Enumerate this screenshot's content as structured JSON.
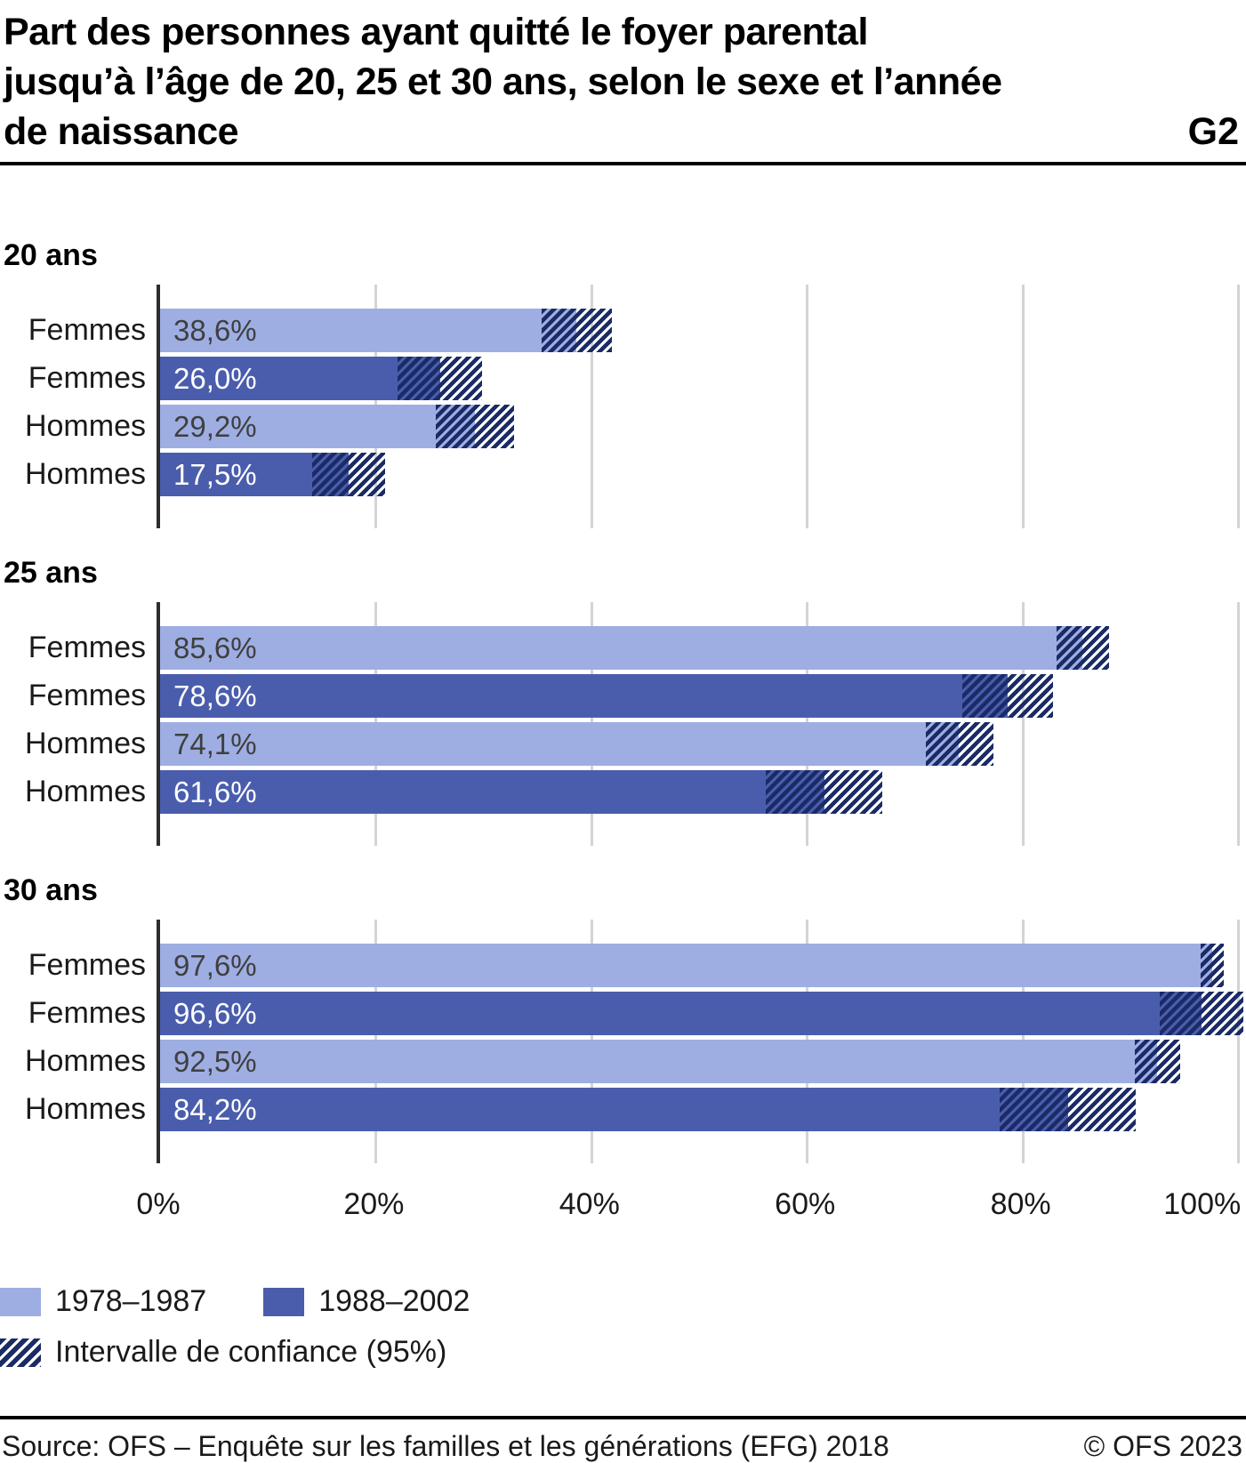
{
  "header": {
    "title_lines": [
      "Part des personnes ayant quitté le foyer parental",
      "jusqu’à l’âge de 20, 25 et 30 ans, selon le sexe et l’année",
      "de naissance"
    ],
    "figure_id": "G2"
  },
  "chart_data": {
    "type": "bar",
    "orientation": "horizontal",
    "title": "Part des personnes ayant quitté le foyer parental jusqu’à l’âge de 20, 25 et 30 ans, selon le sexe et l’année de naissance",
    "value_unit": "%",
    "x_axis": {
      "min": 0,
      "max": 100,
      "tick_values": [
        0,
        20,
        40,
        60,
        80,
        100
      ],
      "ticks": [
        "0%",
        "20%",
        "40%",
        "60%",
        "80%",
        "100%"
      ],
      "grid": true
    },
    "series": [
      {
        "name": "1978–1987",
        "color": "#9EAEE3",
        "value_text_color": "#3F3F3F"
      },
      {
        "name": "1988–2002",
        "color": "#4A5DAD",
        "value_text_color": "#FFFFFF"
      }
    ],
    "groups": [
      {
        "label": "20 ans",
        "bars": [
          {
            "row_label": "Femmes",
            "series_index": 0,
            "value": 38.6,
            "value_label": "38,6%",
            "ci_low": 35.4,
            "ci_high": 41.9
          },
          {
            "row_label": "Femmes",
            "series_index": 1,
            "value": 26.0,
            "value_label": "26,0%",
            "ci_low": 22.0,
            "ci_high": 29.9
          },
          {
            "row_label": "Hommes",
            "series_index": 0,
            "value": 29.2,
            "value_label": "29,2%",
            "ci_low": 25.6,
            "ci_high": 32.8
          },
          {
            "row_label": "Hommes",
            "series_index": 1,
            "value": 17.5,
            "value_label": "17,5%",
            "ci_low": 14.1,
            "ci_high": 20.9
          }
        ]
      },
      {
        "label": "25 ans",
        "bars": [
          {
            "row_label": "Femmes",
            "series_index": 0,
            "value": 85.6,
            "value_label": "85,6%",
            "ci_low": 83.2,
            "ci_high": 88.0
          },
          {
            "row_label": "Femmes",
            "series_index": 1,
            "value": 78.6,
            "value_label": "78,6%",
            "ci_low": 74.4,
            "ci_high": 82.8
          },
          {
            "row_label": "Hommes",
            "series_index": 0,
            "value": 74.1,
            "value_label": "74,1%",
            "ci_low": 71.0,
            "ci_high": 77.3
          },
          {
            "row_label": "Hommes",
            "series_index": 1,
            "value": 61.6,
            "value_label": "61,6%",
            "ci_low": 56.2,
            "ci_high": 67.0
          }
        ]
      },
      {
        "label": "30 ans",
        "bars": [
          {
            "row_label": "Femmes",
            "series_index": 0,
            "value": 97.6,
            "value_label": "97,6%",
            "ci_low": 96.5,
            "ci_high": 98.7
          },
          {
            "row_label": "Femmes",
            "series_index": 1,
            "value": 96.6,
            "value_label": "96,6%",
            "ci_low": 92.7,
            "ci_high": 100.5
          },
          {
            "row_label": "Hommes",
            "series_index": 0,
            "value": 92.5,
            "value_label": "92,5%",
            "ci_low": 90.4,
            "ci_high": 94.6
          },
          {
            "row_label": "Hommes",
            "series_index": 1,
            "value": 84.2,
            "value_label": "84,2%",
            "ci_low": 77.9,
            "ci_high": 90.5
          }
        ]
      }
    ],
    "legend": [
      {
        "key": "series-1978-1987",
        "type": "fill",
        "color": "#9EAEE3",
        "label": "1978–1987"
      },
      {
        "key": "series-1988-2002",
        "type": "fill",
        "color": "#4A5DAD",
        "label": "1988–2002"
      },
      {
        "key": "confidence-interval",
        "type": "hatch",
        "color": "#1B2B66",
        "label": "Intervalle de confiance (95%)"
      }
    ]
  },
  "footer": {
    "source": "Source: OFS – Enquête sur les familles et les générations (EFG) 2018",
    "copyright": "© OFS 2023"
  },
  "colors": {
    "series_light": "#9EAEE3",
    "series_dark": "#4A5DAD",
    "hatch": "#1B2B66",
    "axis_line": "#2D2D2D",
    "gridline": "#D4D4D4",
    "rule": "#000000",
    "value_on_light": "#3F3F3F",
    "value_on_dark": "#FFFFFF"
  }
}
